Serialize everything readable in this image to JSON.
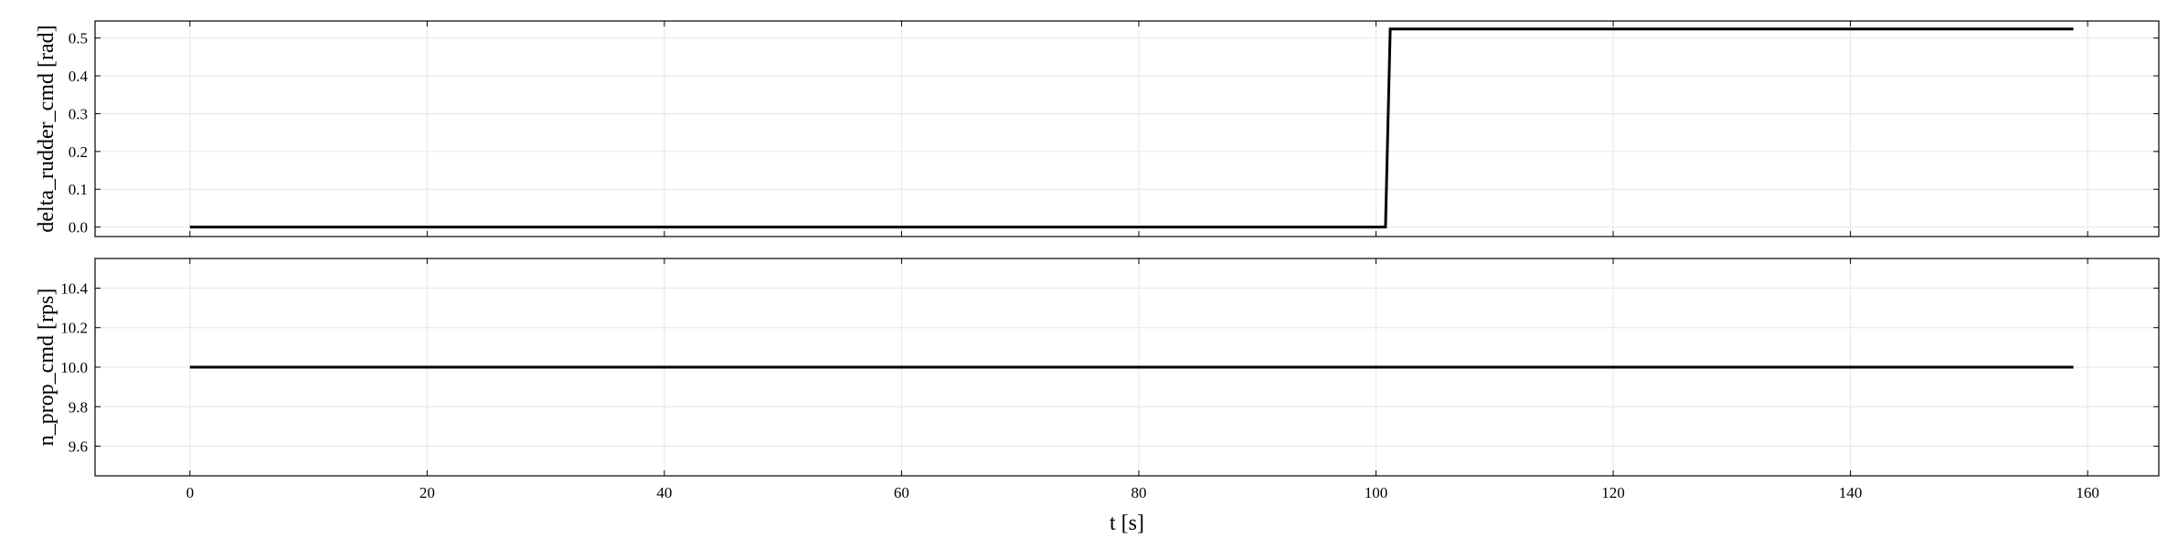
{
  "chart_data": [
    {
      "type": "line",
      "title": "",
      "xlabel": "",
      "ylabel": "delta_rudder_cmd [rad]",
      "xlim": [
        -8,
        166
      ],
      "ylim": [
        -0.025,
        0.545
      ],
      "x_ticks": [
        0,
        20,
        40,
        60,
        80,
        100,
        120,
        140,
        160
      ],
      "y_ticks": [
        0.0,
        0.1,
        0.2,
        0.3,
        0.4,
        0.5
      ],
      "y_tick_labels": [
        "0.0",
        "0.1",
        "0.2",
        "0.3",
        "0.4",
        "0.5"
      ],
      "grid": true,
      "series": [
        {
          "color": "#000000",
          "x": [
            0,
            100.8,
            101.2,
            158.8
          ],
          "y": [
            0.0,
            0.0,
            0.524,
            0.524
          ]
        }
      ]
    },
    {
      "type": "line",
      "title": "",
      "xlabel": "t [s]",
      "ylabel": "n_prop_cmd [rps]",
      "xlim": [
        -8,
        166
      ],
      "ylim": [
        9.45,
        10.55
      ],
      "x_ticks": [
        0,
        20,
        40,
        60,
        80,
        100,
        120,
        140,
        160
      ],
      "x_tick_labels": [
        "0",
        "20",
        "40",
        "60",
        "80",
        "100",
        "120",
        "140",
        "160"
      ],
      "y_ticks": [
        9.6,
        9.8,
        10.0,
        10.2,
        10.4
      ],
      "y_tick_labels": [
        "9.6",
        "9.8",
        "10.0",
        "10.2",
        "10.4"
      ],
      "grid": true,
      "series": [
        {
          "color": "#000000",
          "x": [
            0,
            158.8
          ],
          "y": [
            10.0,
            10.0
          ]
        }
      ]
    }
  ]
}
